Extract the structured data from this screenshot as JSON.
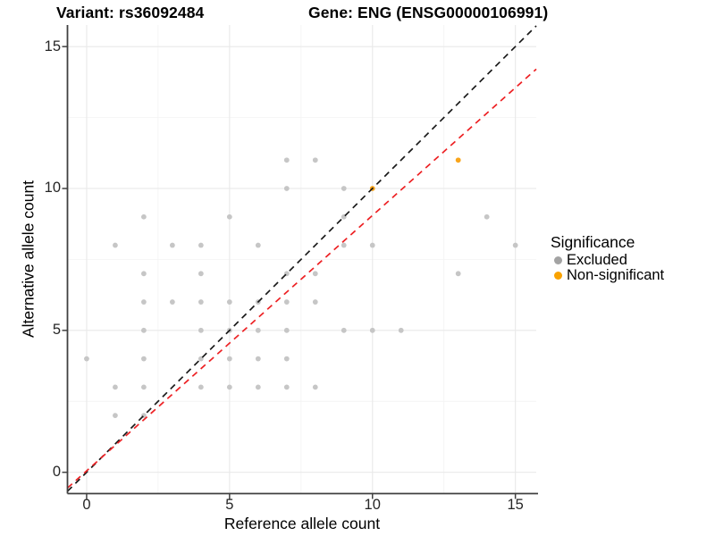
{
  "header": {
    "title_left": "Variant: rs36092484",
    "title_right": "Gene: ENG (ENSG00000106991)"
  },
  "legend": {
    "title": "Significance",
    "items": [
      {
        "label": "Excluded",
        "color": "#a3a3a3"
      },
      {
        "label": "Non-significant",
        "color": "#f9a200"
      }
    ]
  },
  "chart_data": {
    "type": "scatter",
    "xlabel": "Reference allele count",
    "ylabel": "Alternative allele count",
    "xlim": [
      -0.67,
      15.73
    ],
    "ylim": [
      -0.75,
      15.76
    ],
    "xticks": [
      0,
      5,
      10,
      15
    ],
    "yticks": [
      0,
      5,
      10,
      15
    ],
    "x_minor": [
      2.5,
      7.5,
      12.5
    ],
    "y_minor": [
      2.5,
      7.5,
      12.5
    ],
    "grid": {
      "major_color": "#e9e9e9",
      "minor_color": "#f4f4f4"
    },
    "axis_color": "#404040",
    "point_radius": 2.9,
    "series": [
      {
        "name": "Excluded",
        "color": "#c6c6c6",
        "points": [
          [
            1,
            2
          ],
          [
            2,
            2
          ],
          [
            1,
            3
          ],
          [
            2,
            3
          ],
          [
            4,
            3
          ],
          [
            5,
            3
          ],
          [
            6,
            3
          ],
          [
            7,
            3
          ],
          [
            8,
            3
          ],
          [
            0,
            4
          ],
          [
            2,
            4
          ],
          [
            4,
            4
          ],
          [
            5,
            4
          ],
          [
            6,
            4
          ],
          [
            7,
            4
          ],
          [
            2,
            5
          ],
          [
            4,
            5
          ],
          [
            5,
            5
          ],
          [
            6,
            5
          ],
          [
            7,
            5
          ],
          [
            9,
            5
          ],
          [
            10,
            5
          ],
          [
            11,
            5
          ],
          [
            2,
            6
          ],
          [
            3,
            6
          ],
          [
            4,
            6
          ],
          [
            5,
            6
          ],
          [
            6,
            6
          ],
          [
            7,
            6
          ],
          [
            8,
            6
          ],
          [
            2,
            7
          ],
          [
            4,
            7
          ],
          [
            7,
            7
          ],
          [
            8,
            7
          ],
          [
            13,
            7
          ],
          [
            1,
            8
          ],
          [
            3,
            8
          ],
          [
            4,
            8
          ],
          [
            6,
            8
          ],
          [
            9,
            8
          ],
          [
            10,
            8
          ],
          [
            15,
            8
          ],
          [
            2,
            9
          ],
          [
            5,
            9
          ],
          [
            9,
            9
          ],
          [
            14,
            9
          ],
          [
            7,
            10
          ],
          [
            9,
            10
          ],
          [
            7,
            11
          ],
          [
            8,
            11
          ]
        ]
      },
      {
        "name": "Non-significant",
        "color": "#f9a51b",
        "points": [
          [
            10,
            10
          ],
          [
            13,
            11
          ]
        ]
      }
    ],
    "lines": [
      {
        "name": "identity-line",
        "color": "#1a1a1a",
        "slope": 1.0,
        "intercept": 0.0,
        "dash": "7 5.5",
        "width": 1.7
      },
      {
        "name": "fit-line",
        "color": "#ed2124",
        "slope": 0.9,
        "intercept": 0.05,
        "dash": "7 5.5",
        "width": 1.7
      }
    ]
  }
}
